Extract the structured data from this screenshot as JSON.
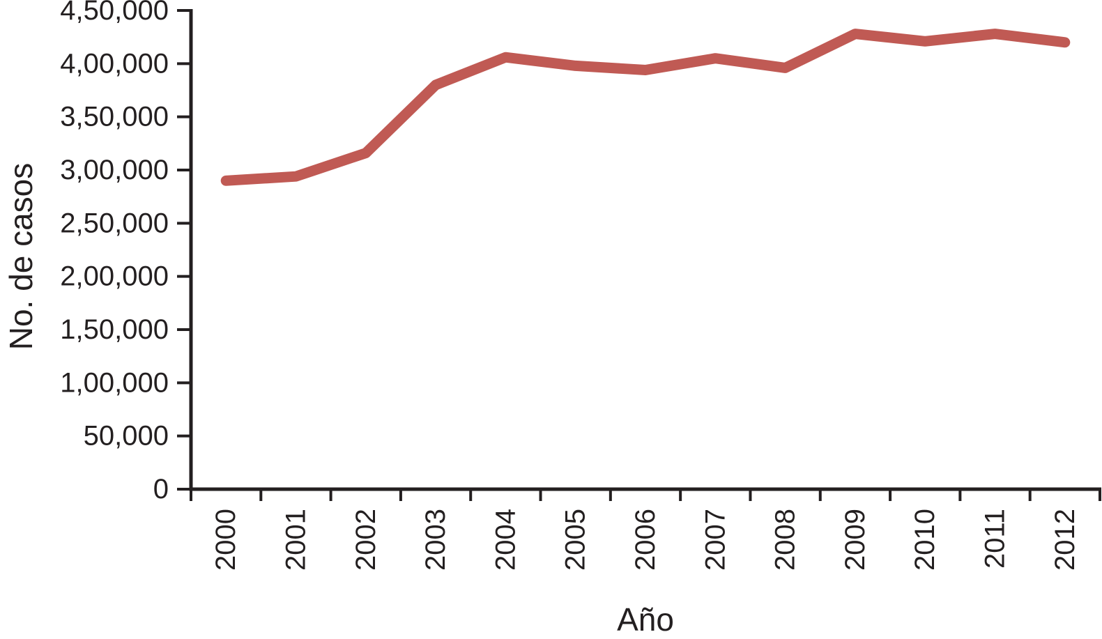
{
  "chart_data": {
    "type": "line",
    "title": "",
    "xlabel": "Año",
    "ylabel": "No. de casos",
    "categories": [
      "2000",
      "2001",
      "2002",
      "2003",
      "2004",
      "2005",
      "2006",
      "2007",
      "2008",
      "2009",
      "2010",
      "2011",
      "2012"
    ],
    "series": [
      {
        "name": "No. de casos",
        "values": [
          290000,
          294000,
          316000,
          380000,
          406000,
          398000,
          394000,
          405000,
          396000,
          428000,
          421000,
          428000,
          420000
        ]
      }
    ],
    "ylim": [
      0,
      450000
    ],
    "y_tick_step": 50000,
    "y_tick_labels": [
      "0",
      "50,000",
      "1,00,000",
      "1,50,000",
      "2,00,000",
      "2,50,000",
      "3,00,000",
      "3,50,000",
      "4,00,000",
      "4,50,000"
    ],
    "x_tick_labels_rotated": true,
    "number_format": "indian-lakh-grouping",
    "grid": false,
    "legend": false,
    "colors": {
      "line": "#C05A54",
      "axis": "#231f20",
      "text": "#231f20",
      "background": "#ffffff"
    }
  }
}
